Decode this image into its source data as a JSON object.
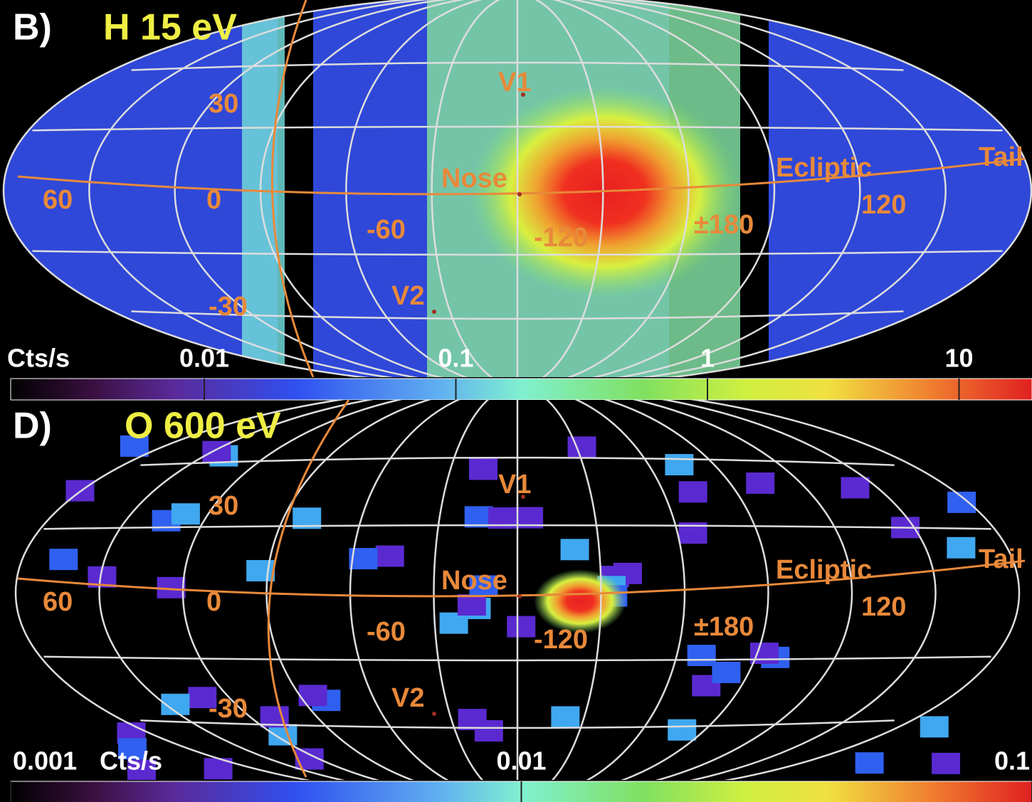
{
  "panels": [
    {
      "label": "B)",
      "title": "H 15 eV",
      "annotations": [
        "V1",
        "Nose",
        "V2",
        "Ecliptic",
        "Tail",
        "60",
        "0",
        "-60",
        "-120",
        "±180",
        "120",
        "30",
        "-30"
      ],
      "colorbar": {
        "unit": "Cts/s",
        "scale": "log",
        "lim": [
          0.0017,
          19.5
        ],
        "ticks": [
          0.01,
          0.1,
          1,
          10
        ]
      }
    },
    {
      "label": "D)",
      "title": "O 600 eV",
      "annotations": [
        "V1",
        "Nose",
        "V2",
        "Ecliptic",
        "Tail",
        "60",
        "0",
        "-60",
        "-120",
        "±180",
        "120",
        "30",
        "-30"
      ],
      "colorbar": {
        "unit": "Cts/s",
        "scale": "log",
        "lim": [
          0.001,
          0.1
        ],
        "ticks": [
          0.001,
          0.01,
          0.1
        ]
      }
    }
  ]
}
